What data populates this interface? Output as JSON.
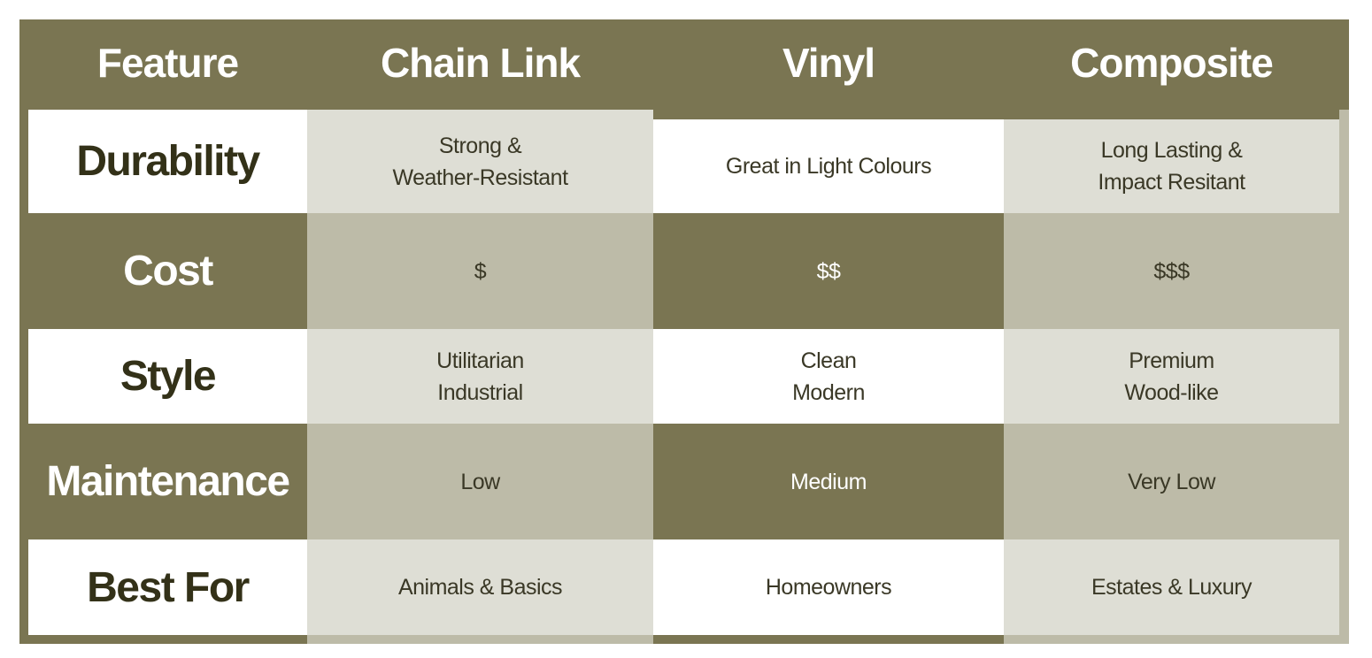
{
  "table": {
    "header": [
      "Feature",
      "Chain Link",
      "Vinyl",
      "Composite"
    ],
    "rows": [
      [
        "Durability",
        "Strong &\nWeather-Resistant",
        "Great in Light Colours",
        "Long Lasting &\nImpact Resitant"
      ],
      [
        "Cost",
        "$",
        "$$",
        "$$$"
      ],
      [
        "Style",
        "Utilitarian\nIndustrial",
        "Clean\nModern",
        "Premium\nWood-like"
      ],
      [
        "Maintenance",
        "Low",
        "Medium",
        "Very Low"
      ],
      [
        "Best For",
        "Animals & Basics",
        "Homeowners",
        "Estates & Luxury"
      ]
    ]
  }
}
